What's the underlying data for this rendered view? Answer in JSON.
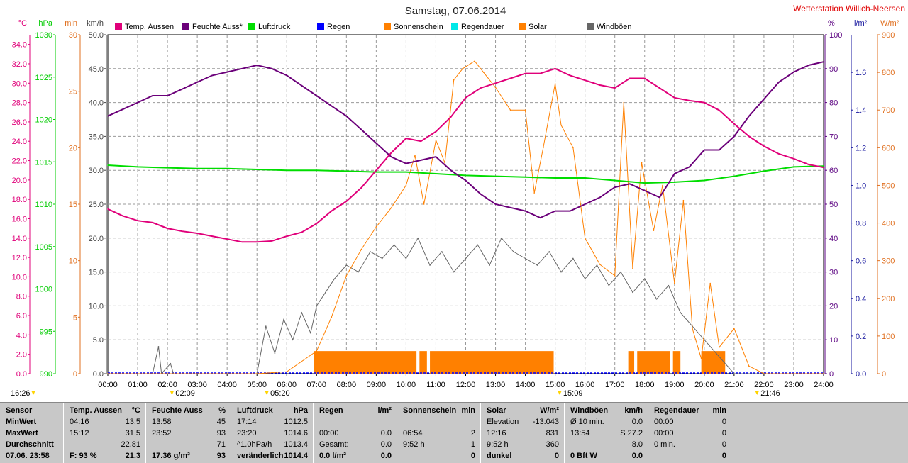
{
  "header": {
    "title": "Samstag, 07.06.2014",
    "station": "Wetterstation Willich-Neersen"
  },
  "legend": [
    {
      "label": "Temp. Aussen",
      "color": "#e0007a"
    },
    {
      "label": "Feuchte Auss*",
      "color": "#6b007a"
    },
    {
      "label": "Luftdruck",
      "color": "#00dd00"
    },
    {
      "label": "Regen",
      "color": "#0000ff"
    },
    {
      "label": "Sonnenschein",
      "color": "#ff8000"
    },
    {
      "label": "Regendauer",
      "color": "#00e8e8"
    },
    {
      "label": "Solar",
      "color": "#ff8000"
    },
    {
      "label": "Windböen",
      "color": "#666666"
    }
  ],
  "axes": {
    "temp": {
      "unit": "°C",
      "ticks": [
        "34.0",
        "32.0",
        "30.0",
        "28.0",
        "26.0",
        "24.0",
        "22.0",
        "20.0",
        "18.0",
        "16.0",
        "14.0",
        "12.0",
        "10.0",
        "8.0",
        "6.0",
        "4.0",
        "2.0",
        "0.0"
      ],
      "color": "#e0007a"
    },
    "hpa": {
      "unit": "hPa",
      "ticks": [
        "1030",
        "1025",
        "1020",
        "1015",
        "1010",
        "1005",
        "1000",
        "995",
        "990"
      ],
      "color": "#00cc00"
    },
    "min": {
      "unit": "min",
      "ticks": [
        "30",
        "25",
        "20",
        "15",
        "10",
        "5",
        "0"
      ],
      "color": "#e07020"
    },
    "kmh": {
      "unit": "km/h",
      "ticks": [
        "50.0",
        "45.0",
        "40.0",
        "35.0",
        "30.0",
        "25.0",
        "20.0",
        "15.0",
        "10.0",
        "5.0",
        "0.0"
      ],
      "color": "#444444"
    },
    "pct": {
      "unit": "%",
      "ticks": [
        "100",
        "90",
        "80",
        "70",
        "60",
        "50",
        "40",
        "30",
        "20",
        "10",
        "0"
      ],
      "color": "#5a0080"
    },
    "lm2": {
      "unit": "l/m²",
      "ticks": [
        "1.6",
        "1.4",
        "1.2",
        "1.0",
        "0.8",
        "0.6",
        "0.4",
        "0.2",
        "0.0"
      ],
      "color": "#1a1aa0"
    },
    "wm2": {
      "unit": "W/m²",
      "ticks": [
        "900",
        "800",
        "700",
        "600",
        "500",
        "400",
        "300",
        "200",
        "100",
        "0"
      ],
      "color": "#e07020"
    },
    "time_ticks": [
      "00:00",
      "01:00",
      "02:00",
      "03:00",
      "04:00",
      "05:00",
      "06:00",
      "07:00",
      "08:00",
      "09:00",
      "10:00",
      "11:00",
      "12:00",
      "13:00",
      "14:00",
      "15:00",
      "16:00",
      "17:00",
      "18:00",
      "19:00",
      "20:00",
      "21:00",
      "22:00",
      "23:00",
      "24:00"
    ]
  },
  "time_markers": [
    {
      "text": "16:26",
      "row": 1
    },
    {
      "text": "02:09",
      "row": 1
    },
    {
      "text": "05:20",
      "row": 1
    },
    {
      "text": "15:09",
      "row": 1
    },
    {
      "text": "21:46",
      "row": 1
    }
  ],
  "chart_data": {
    "type": "line",
    "x_unit": "hours",
    "xlim": [
      0,
      24
    ],
    "series": [
      {
        "name": "Temp. Aussen",
        "unit": "°C",
        "color": "#e0007a",
        "x": [
          0,
          0.5,
          1,
          1.5,
          2,
          2.5,
          3,
          3.5,
          4,
          4.5,
          5,
          5.5,
          6,
          6.5,
          7,
          7.5,
          8,
          8.5,
          9,
          9.5,
          10,
          10.5,
          11,
          11.5,
          12,
          12.5,
          13,
          13.5,
          14,
          14.5,
          15,
          15.5,
          16,
          16.5,
          17,
          17.5,
          18,
          18.5,
          19,
          19.5,
          20,
          20.5,
          21,
          21.5,
          22,
          22.5,
          23,
          23.5,
          24
        ],
        "y": [
          17.0,
          16.3,
          15.8,
          15.6,
          15.0,
          14.7,
          14.5,
          14.2,
          13.9,
          13.6,
          13.6,
          13.7,
          14.2,
          14.6,
          15.5,
          16.8,
          17.8,
          19.2,
          21.0,
          22.8,
          24.3,
          24.0,
          25.0,
          26.5,
          28.5,
          29.5,
          30.0,
          30.5,
          31.0,
          31.0,
          31.5,
          30.8,
          30.3,
          29.8,
          29.5,
          30.5,
          30.5,
          29.5,
          28.5,
          28.2,
          28.0,
          27.2,
          25.8,
          24.5,
          23.5,
          22.7,
          22.2,
          21.6,
          21.3
        ]
      },
      {
        "name": "Feuchte Auss*",
        "unit": "%",
        "color": "#6b007a",
        "x": [
          0,
          0.5,
          1,
          1.5,
          2,
          2.5,
          3,
          3.5,
          4,
          4.5,
          5,
          5.5,
          6,
          6.5,
          7,
          7.5,
          8,
          8.5,
          9,
          9.5,
          10,
          10.5,
          11,
          11.5,
          12,
          12.5,
          13,
          13.5,
          14,
          14.5,
          15,
          15.5,
          16,
          16.5,
          17,
          17.5,
          18,
          18.5,
          19,
          19.5,
          20,
          20.5,
          21,
          21.5,
          22,
          22.5,
          23,
          23.5,
          24
        ],
        "y": [
          76,
          78,
          80,
          82,
          82,
          84,
          86,
          88,
          89,
          90,
          91,
          90,
          88,
          85,
          82,
          79,
          76,
          72,
          68,
          64,
          62,
          63,
          64,
          60,
          57,
          53,
          50,
          49,
          48,
          46,
          48,
          48,
          50,
          52,
          55,
          56,
          54,
          52,
          59,
          61,
          66,
          66,
          70,
          76,
          81,
          86,
          89,
          91,
          92
        ]
      },
      {
        "name": "Luftdruck",
        "unit": "hPa",
        "color": "#00dd00",
        "x": [
          0,
          1,
          2,
          3,
          4,
          5,
          6,
          7,
          8,
          9,
          10,
          11,
          12,
          13,
          14,
          15,
          16,
          17,
          18,
          19,
          20,
          21,
          22,
          23,
          24
        ],
        "y": [
          1014.6,
          1014.4,
          1014.3,
          1014.2,
          1014.2,
          1014.1,
          1014.0,
          1014.0,
          1013.9,
          1013.8,
          1013.8,
          1013.6,
          1013.4,
          1013.3,
          1013.2,
          1013.1,
          1013.1,
          1012.8,
          1012.5,
          1012.6,
          1012.8,
          1013.3,
          1013.9,
          1014.4,
          1014.5
        ]
      },
      {
        "name": "Solar",
        "unit": "W/m²",
        "color": "#ff8000",
        "x": [
          0,
          5,
          6,
          7,
          7.5,
          8,
          8.5,
          9,
          9.5,
          10,
          10.3,
          10.6,
          11,
          11.3,
          11.6,
          11.9,
          12.3,
          12.6,
          13,
          13.5,
          14,
          14.3,
          14.6,
          15,
          15.2,
          15.6,
          16,
          16.5,
          17,
          17.3,
          17.6,
          17.9,
          18.3,
          18.6,
          19,
          19.3,
          19.6,
          19.9,
          20.2,
          20.5,
          21,
          21.5,
          22,
          24
        ],
        "y": [
          0,
          0,
          5,
          60,
          150,
          260,
          330,
          390,
          440,
          500,
          580,
          450,
          620,
          560,
          780,
          810,
          830,
          800,
          760,
          700,
          700,
          480,
          600,
          770,
          660,
          600,
          360,
          290,
          260,
          720,
          280,
          560,
          380,
          500,
          240,
          460,
          120,
          40,
          240,
          70,
          120,
          20,
          0,
          0
        ]
      },
      {
        "name": "Windböen",
        "unit": "km/h",
        "color": "#666666",
        "x": [
          0,
          1.5,
          1.7,
          1.8,
          2.1,
          2.2,
          3,
          4,
          5,
          5.3,
          5.6,
          5.9,
          6.2,
          6.5,
          6.8,
          7,
          7.3,
          7.6,
          8,
          8.4,
          8.8,
          9.2,
          9.6,
          10,
          10.4,
          10.8,
          11.2,
          11.6,
          12,
          12.4,
          12.8,
          13.2,
          13.6,
          14,
          14.4,
          14.8,
          15.2,
          15.6,
          16,
          16.4,
          16.8,
          17.2,
          17.6,
          18,
          18.4,
          18.8,
          19.2,
          19.6,
          20,
          20.4,
          20.8,
          21,
          22,
          24
        ],
        "y": [
          0,
          0,
          4,
          0,
          1.5,
          0,
          0,
          0,
          0,
          7,
          3,
          8,
          5,
          9,
          6,
          10,
          12,
          14,
          16,
          15,
          18,
          17,
          19,
          17,
          20,
          16,
          18,
          15,
          17,
          19,
          16,
          20,
          18,
          17,
          16,
          18,
          15,
          17,
          14,
          16,
          13,
          15,
          12,
          14,
          11,
          13,
          9,
          7,
          5,
          3,
          1,
          0,
          0,
          0
        ]
      },
      {
        "name": "Sonnenschein",
        "unit": "min",
        "color": "#ff8000",
        "bar_ranges": [
          [
            6.9,
            10.35
          ],
          [
            10.45,
            10.7
          ],
          [
            10.8,
            14.95
          ],
          [
            17.45,
            17.65
          ],
          [
            17.75,
            18.85
          ],
          [
            18.95,
            19.2
          ],
          [
            19.9,
            20.7
          ]
        ],
        "y": 2
      }
    ]
  },
  "summary": {
    "columns": [
      {
        "head": [
          "Sensor",
          ""
        ],
        "rows": [
          [
            "MinWert",
            ""
          ],
          [
            "MaxWert",
            ""
          ],
          [
            "Durchschnitt",
            ""
          ],
          [
            "07.06.  23:58",
            ""
          ]
        ]
      },
      {
        "head": [
          "Temp. Aussen",
          "°C"
        ],
        "rows": [
          [
            "04:16",
            "13.5"
          ],
          [
            "15:12",
            "31.5"
          ],
          [
            "",
            "22.81"
          ],
          [
            "F: 93 %",
            "21.3"
          ]
        ]
      },
      {
        "head": [
          "Feuchte Auss",
          "%"
        ],
        "rows": [
          [
            "13:58",
            "45"
          ],
          [
            "23:52",
            "93"
          ],
          [
            "",
            "71"
          ],
          [
            "17.36 g/m³",
            "93"
          ]
        ]
      },
      {
        "head": [
          "Luftdruck",
          "hPa"
        ],
        "rows": [
          [
            "17:14",
            "1012.5"
          ],
          [
            "23:20",
            "1014.6"
          ],
          [
            "^1.0hPa/h",
            "1013.4"
          ],
          [
            "veränderlich",
            "1014.4"
          ]
        ]
      },
      {
        "head": [
          "Regen",
          "l/m²"
        ],
        "rows": [
          [
            "",
            ""
          ],
          [
            "00:00",
            "0.0"
          ],
          [
            "Gesamt:",
            "0.0"
          ],
          [
            "0.0 l/m²",
            "0.0"
          ]
        ]
      },
      {
        "head": [
          "Sonnenschein",
          "min"
        ],
        "rows": [
          [
            "",
            ""
          ],
          [
            "06:54",
            "2"
          ],
          [
            "9:52 h",
            "1"
          ],
          [
            "",
            "0"
          ]
        ]
      },
      {
        "head": [
          "Solar",
          "W/m²"
        ],
        "rows": [
          [
            "Elevation",
            "-13.043"
          ],
          [
            "12:16",
            "831"
          ],
          [
            "9:52 h",
            "360"
          ],
          [
            "dunkel",
            "0"
          ]
        ]
      },
      {
        "head": [
          "Windböen",
          "km/h"
        ],
        "rows": [
          [
            "Ø 10 min.",
            "0.0"
          ],
          [
            "13:54",
            "S 27.2"
          ],
          [
            "",
            "8.0"
          ],
          [
            "0 Bft W",
            "0.0"
          ]
        ]
      },
      {
        "head": [
          "Regendauer",
          "min"
        ],
        "rows": [
          [
            "00:00",
            "0"
          ],
          [
            "00:00",
            "0"
          ],
          [
            "0 min.",
            "0"
          ],
          [
            "",
            "0"
          ]
        ]
      }
    ]
  }
}
